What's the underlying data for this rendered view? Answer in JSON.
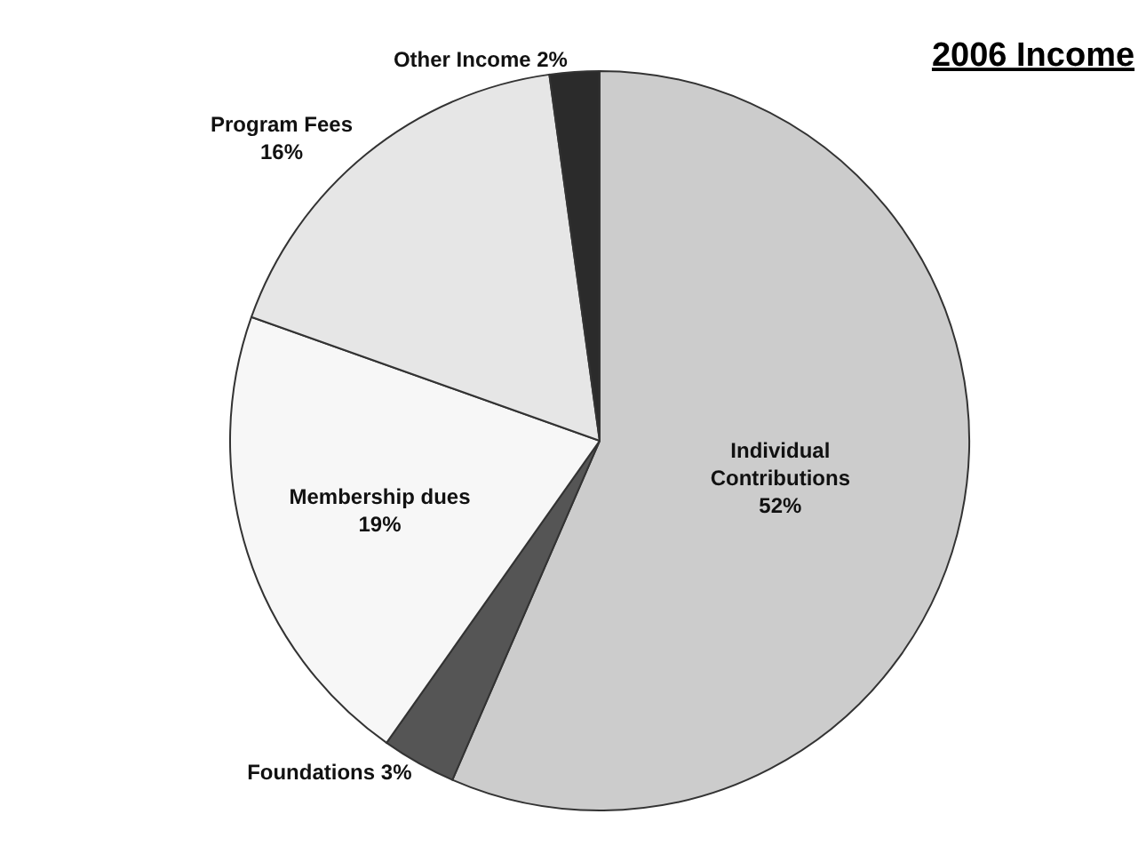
{
  "chart_data": {
    "type": "pie",
    "title": "2006 Income",
    "categories": [
      "Individual Contributions",
      "Foundations",
      "Membership dues",
      "Program Fees",
      "Other Income"
    ],
    "values": [
      52,
      3,
      19,
      16,
      2
    ],
    "value_labels": [
      "52%",
      "3%",
      "19%",
      "16%",
      "2%"
    ],
    "colors": [
      "#cccccc",
      "#555555",
      "#f7f7f7",
      "#e6e6e6",
      "#2b2b2b"
    ],
    "legend": false
  }
}
